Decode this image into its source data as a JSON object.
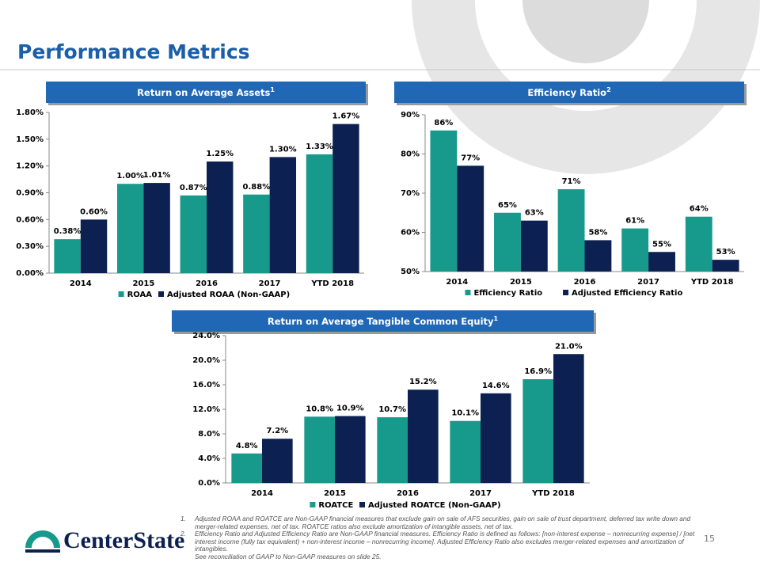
{
  "title": "Performance Metrics",
  "chart_data": [
    {
      "type": "bar",
      "title": "Return on Average Assets",
      "title_note": "1",
      "categories": [
        "2014",
        "2015",
        "2016",
        "2017",
        "YTD 2018"
      ],
      "series": [
        {
          "name": "ROAA",
          "color": "#17998c",
          "values": [
            0.38,
            1.0,
            0.87,
            0.88,
            1.33
          ],
          "value_labels": [
            "0.38%",
            "1.00%",
            "0.87%",
            "0.88%",
            "1.33%"
          ]
        },
        {
          "name": "Adjusted ROAA (Non-GAAP)",
          "color": "#0c2151",
          "values": [
            0.6,
            1.01,
            1.25,
            1.3,
            1.67
          ],
          "value_labels": [
            "0.60%",
            "1.01%",
            "1.25%",
            "1.30%",
            "1.67%"
          ]
        }
      ],
      "ylim": [
        0,
        1.8
      ],
      "yticks": [
        {
          "value": 0,
          "label": "0.00%"
        },
        {
          "value": 0.3,
          "label": "0.30%"
        },
        {
          "value": 0.6,
          "label": "0.60%"
        },
        {
          "value": 0.9,
          "label": "0.90%"
        },
        {
          "value": 1.2,
          "label": "1.20%"
        },
        {
          "value": 1.5,
          "label": "1.50%"
        },
        {
          "value": 1.8,
          "label": "1.80%"
        }
      ]
    },
    {
      "type": "bar",
      "title": "Efficiency Ratio",
      "title_note": "2",
      "categories": [
        "2014",
        "2015",
        "2016",
        "2017",
        "YTD 2018"
      ],
      "series": [
        {
          "name": "Efficiency Ratio",
          "color": "#17998c",
          "values": [
            86,
            65,
            71,
            61,
            64
          ],
          "value_labels": [
            "86%",
            "65%",
            "71%",
            "61%",
            "64%"
          ]
        },
        {
          "name": "Adjusted Efficiency Ratio",
          "color": "#0c2151",
          "values": [
            77,
            63,
            58,
            55,
            53
          ],
          "value_labels": [
            "77%",
            "63%",
            "58%",
            "55%",
            "53%"
          ]
        }
      ],
      "ylim": [
        50,
        90
      ],
      "yticks": [
        {
          "value": 50,
          "label": "50%"
        },
        {
          "value": 60,
          "label": "60%"
        },
        {
          "value": 70,
          "label": "70%"
        },
        {
          "value": 80,
          "label": "80%"
        },
        {
          "value": 90,
          "label": "90%"
        }
      ]
    },
    {
      "type": "bar",
      "title": "Return on Average Tangible Common Equity",
      "title_note": "1",
      "categories": [
        "2014",
        "2015",
        "2016",
        "2017",
        "YTD 2018"
      ],
      "series": [
        {
          "name": "ROATCE",
          "color": "#17998c",
          "values": [
            4.8,
            10.8,
            10.7,
            10.1,
            16.9
          ],
          "value_labels": [
            "4.8%",
            "10.8%",
            "10.7%",
            "10.1%",
            "16.9%"
          ]
        },
        {
          "name": "Adjusted ROATCE (Non-GAAP)",
          "color": "#0c2151",
          "values": [
            7.2,
            10.9,
            15.2,
            14.6,
            21.0
          ],
          "value_labels": [
            "7.2%",
            "10.9%",
            "15.2%",
            "14.6%",
            "21.0%"
          ]
        }
      ],
      "ylim": [
        0,
        24
      ],
      "yticks": [
        {
          "value": 0,
          "label": "0.0%"
        },
        {
          "value": 4,
          "label": "4.0%"
        },
        {
          "value": 8,
          "label": "8.0%"
        },
        {
          "value": 12,
          "label": "12.0%"
        },
        {
          "value": 16,
          "label": "16.0%"
        },
        {
          "value": 20,
          "label": "20.0%"
        },
        {
          "value": 24,
          "label": "24.0%"
        }
      ]
    }
  ],
  "footnotes": [
    {
      "marker": "1.",
      "text": "Adjusted ROAA and ROATCE are Non-GAAP financial measures that exclude gain on sale of AFS securities, gain on sale of trust department, deferred tax write down and merger-related expenses, net of tax.  ROATCE ratios also exclude amortization of intangible assets, net of tax."
    },
    {
      "marker": "2.",
      "text": "Efficiency Ratio and Adjusted Efficiency Ratio are Non-GAAP financial measures.  Efficiency Ratio is defined as follows:  [non-interest expense – nonrecurring expense] / [net interest income (fully tax equivalent) + non-interest income – nonrecurring income].  Adjusted Efficiency Ratio also excludes merger-related expenses and amortization of intangibles."
    },
    {
      "text": "See reconciliation of GAAP to Non-GAAP measures on slide 25."
    }
  ],
  "page_number": "15",
  "logo": "CenterState"
}
